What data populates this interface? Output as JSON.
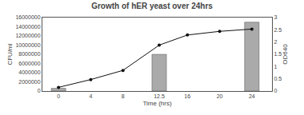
{
  "chart_data": {
    "type": "bar",
    "title": "Growth of hER yeast over 24hrs",
    "xlabel": "Time (hrs)",
    "ylabel": "CFU/ml",
    "y2label": "OD640",
    "series": [
      {
        "type": "bar",
        "color": "#aaaaaa",
        "x": [
          0,
          12.5,
          24
        ],
        "values": [
          600000,
          8000000,
          15000000
        ]
      },
      {
        "type": "line",
        "color": "#111111",
        "marker": "circle",
        "x": [
          0,
          4,
          8,
          12.5,
          16,
          20,
          24
        ],
        "values": [
          800000,
          2500000,
          4500000,
          10000000,
          12200000,
          13000000,
          13500000
        ]
      }
    ],
    "xlim": [
      -2,
      26.5
    ],
    "xticks": [
      0,
      4,
      8,
      12.5,
      16,
      20,
      24
    ],
    "ylim": [
      0,
      16000000
    ],
    "yticks": [
      0,
      2000000,
      4000000,
      6000000,
      8000000,
      10000000,
      12000000,
      14000000,
      16000000
    ],
    "y2lim": [
      0,
      3
    ],
    "y2ticks": [
      0,
      0.5,
      1,
      1.5,
      2,
      2.5,
      3
    ],
    "grid": false
  }
}
